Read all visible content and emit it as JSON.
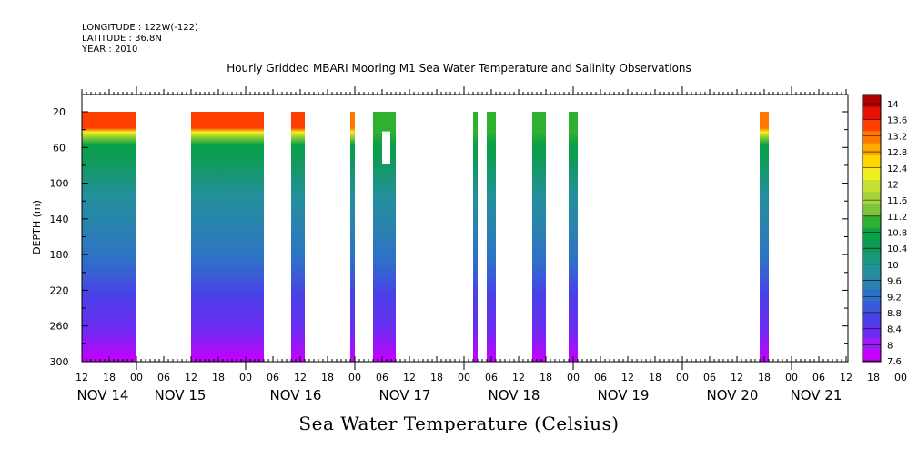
{
  "header": {
    "longitude": "LONGITUDE : 122W(-122)",
    "latitude": "LATITUDE : 36.8N",
    "year": "YEAR : 2010"
  },
  "colorbar_caption": "Sea Water Temperature (Celsius)",
  "chart_data": {
    "type": "heatmap",
    "title": "Hourly Gridded MBARI Mooring M1 Sea Water Temperature and Salinity Observations",
    "xlabel": "",
    "ylabel": "DEPTH (m)",
    "x_start_hour_label": "12",
    "x_hour_labels": [
      "12",
      "18",
      "00",
      "06",
      "12",
      "18",
      "00",
      "06",
      "12",
      "18",
      "00",
      "06",
      "12",
      "18",
      "00",
      "06",
      "12",
      "18",
      "00",
      "06",
      "12",
      "18",
      "00",
      "06",
      "12",
      "18",
      "00",
      "06",
      "12",
      "18",
      "00",
      "06",
      "12"
    ],
    "x_day_labels": [
      "NOV 14",
      "NOV 15",
      "NOV 16",
      "NOV 17",
      "NOV 18",
      "NOV 19",
      "NOV 20",
      "NOV 21"
    ],
    "ylim": [
      300,
      0
    ],
    "y_ticks": [
      20,
      60,
      100,
      140,
      180,
      220,
      260,
      300
    ],
    "colorbar_levels": [
      7.6,
      8,
      8.4,
      8.8,
      9.2,
      9.6,
      10,
      10.4,
      10.8,
      11.2,
      11.6,
      12,
      12.4,
      12.8,
      13.2,
      13.6,
      14
    ],
    "colorbar_colors": [
      "#c600ff",
      "#9a1cf5",
      "#6a2cf0",
      "#4a40e8",
      "#3a58dc",
      "#2e70c8",
      "#2a82b0",
      "#23909a",
      "#1a9880",
      "#109a5a",
      "#08a048",
      "#30b030",
      "#7cc43c",
      "#a8d23a",
      "#c8e034",
      "#f0f020",
      "#ffd800",
      "#ffa800",
      "#ff7800",
      "#ff4000",
      "#e81000",
      "#b00000"
    ],
    "data_segments": [
      {
        "start": "NOV 14 12:00",
        "end": "NOV 15 00:00",
        "surface_temp": 13.6
      },
      {
        "start": "NOV 15 12:00",
        "end": "NOV 16 04:00",
        "surface_temp": 13.6
      },
      {
        "start": "NOV 16 10:00",
        "end": "NOV 16 13:00",
        "surface_temp": 13.6
      },
      {
        "start": "NOV 16 23:00",
        "end": "NOV 17 00:00",
        "surface_temp": 13.2
      },
      {
        "start": "NOV 17 04:00",
        "end": "NOV 17 06:00",
        "surface_temp": 11.2
      },
      {
        "start": "NOV 17 06:00",
        "end": "NOV 17 09:00",
        "surface_temp": 11.0
      },
      {
        "start": "NOV 18 02:00",
        "end": "NOV 18 03:00",
        "surface_temp": 11.2
      },
      {
        "start": "NOV 18 05:00",
        "end": "NOV 18 07:00",
        "surface_temp": 11.0
      },
      {
        "start": "NOV 18 15:00",
        "end": "NOV 18 18:00",
        "surface_temp": 11.0
      },
      {
        "start": "NOV 18 23:00",
        "end": "NOV 19 01:00",
        "surface_temp": 11.0
      },
      {
        "start": "NOV 20 17:00",
        "end": "NOV 20 19:00",
        "surface_temp": 13.2
      }
    ],
    "grid": false,
    "legend": "right"
  }
}
